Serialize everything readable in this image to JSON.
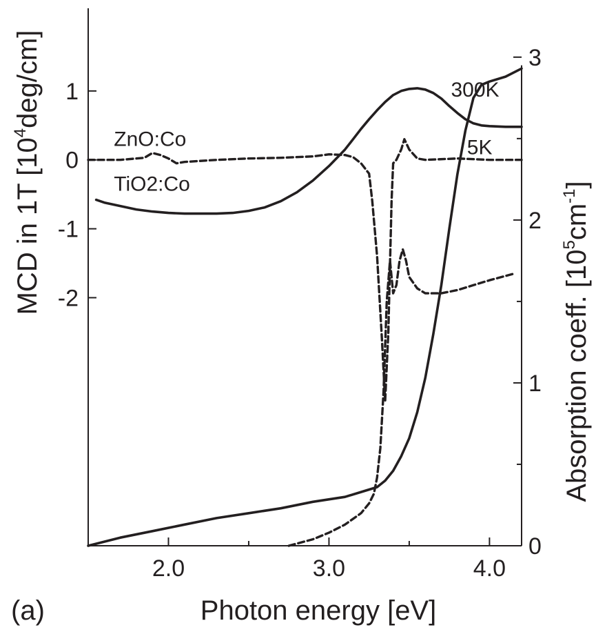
{
  "chart_data": {
    "type": "line",
    "panel_label": "(a)",
    "xlabel": "Photon energy [eV]",
    "ylabel_left": "MCD in 1T [10⁴deg/cm]",
    "ylabel_left_parts": {
      "pre": "MCD in 1T [10",
      "sup": "4",
      "post": "deg/cm]"
    },
    "ylabel_right": "Absorption coeff. [10⁵cm⁻¹]",
    "ylabel_right_parts": {
      "pre": "Absorption coeff. [10",
      "sup1": "5",
      "mid": "cm",
      "sup2": "-1",
      "post": "]"
    },
    "xlim": [
      1.5,
      4.2
    ],
    "ylim_left": [
      -5.6,
      2.2
    ],
    "ylim_right": [
      0,
      3.3
    ],
    "x_ticks": [
      {
        "value": 2.0,
        "label": "2.0"
      },
      {
        "value": 3.0,
        "label": "3.0"
      },
      {
        "value": 4.0,
        "label": "4.0"
      }
    ],
    "x_minor_ticks": [
      2.5,
      3.5
    ],
    "y_left_ticks": [
      {
        "value": 1,
        "label": "1"
      },
      {
        "value": 0,
        "label": "0"
      },
      {
        "value": -1,
        "label": "-1"
      },
      {
        "value": -2,
        "label": "-2"
      }
    ],
    "y_right_ticks": [
      {
        "value": 0,
        "label": "0"
      },
      {
        "value": 1,
        "label": "1"
      },
      {
        "value": 2,
        "label": "2"
      },
      {
        "value": 3,
        "label": "3"
      }
    ],
    "y_right_minor_ticks": [
      0.5,
      1.5,
      2.5
    ],
    "annotations": [
      {
        "id": "zno",
        "text": "ZnO:Co",
        "x": 1.66,
        "y": 0.2
      },
      {
        "id": "tio2",
        "text": "TiO2:Co",
        "x": 1.66,
        "y": -0.45
      },
      {
        "id": "t300",
        "text": "300K",
        "x": 3.76,
        "y": 0.92
      },
      {
        "id": "t5",
        "text": "5K",
        "x": 3.86,
        "y": 0.08
      }
    ],
    "series": [
      {
        "name": "TiO2:Co MCD 300K",
        "axis": "left",
        "style": "solid",
        "x": [
          1.55,
          1.6,
          1.7,
          1.8,
          1.9,
          2.0,
          2.1,
          2.2,
          2.3,
          2.4,
          2.5,
          2.6,
          2.7,
          2.8,
          2.9,
          3.0,
          3.05,
          3.1,
          3.15,
          3.2,
          3.25,
          3.3,
          3.35,
          3.4,
          3.45,
          3.5,
          3.55,
          3.6,
          3.65,
          3.7,
          3.75,
          3.8,
          3.85,
          3.9,
          3.95,
          4.0,
          4.1,
          4.2
        ],
        "y": [
          -0.58,
          -0.62,
          -0.67,
          -0.72,
          -0.75,
          -0.77,
          -0.78,
          -0.78,
          -0.78,
          -0.77,
          -0.74,
          -0.69,
          -0.6,
          -0.47,
          -0.3,
          -0.09,
          0.03,
          0.15,
          0.3,
          0.45,
          0.59,
          0.72,
          0.84,
          0.94,
          1.0,
          1.03,
          1.04,
          1.02,
          0.97,
          0.89,
          0.78,
          0.68,
          0.59,
          0.53,
          0.5,
          0.49,
          0.48,
          0.48
        ]
      },
      {
        "name": "ZnO:Co MCD 5K",
        "axis": "left",
        "style": "dashed",
        "x": [
          1.5,
          1.7,
          1.85,
          1.9,
          1.95,
          2.0,
          2.05,
          2.1,
          2.3,
          2.5,
          2.7,
          2.9,
          3.0,
          3.1,
          3.15,
          3.2,
          3.25,
          3.27,
          3.3,
          3.33,
          3.35,
          3.37,
          3.39,
          3.4,
          3.42,
          3.45,
          3.47,
          3.5,
          3.55,
          3.6,
          3.8,
          4.0,
          4.2
        ],
        "y": [
          0.0,
          0.0,
          0.03,
          0.1,
          0.07,
          0.02,
          -0.05,
          -0.03,
          0.0,
          0.02,
          0.03,
          0.05,
          0.08,
          0.07,
          0.04,
          -0.05,
          -0.2,
          -0.6,
          -1.4,
          -2.6,
          -3.5,
          -2.5,
          -0.6,
          -0.05,
          0.0,
          0.15,
          0.3,
          0.15,
          0.02,
          0.0,
          0.02,
          0.0,
          0.0
        ]
      },
      {
        "name": "TiO2:Co absorption",
        "axis": "right",
        "style": "solid",
        "x": [
          1.5,
          1.7,
          1.9,
          2.1,
          2.3,
          2.5,
          2.7,
          2.9,
          3.1,
          3.2,
          3.3,
          3.35,
          3.4,
          3.45,
          3.5,
          3.55,
          3.6,
          3.65,
          3.7,
          3.75,
          3.8,
          3.85,
          3.9,
          3.95,
          4.0,
          4.1,
          4.2
        ],
        "y": [
          0.0,
          0.05,
          0.09,
          0.13,
          0.17,
          0.2,
          0.23,
          0.27,
          0.3,
          0.33,
          0.36,
          0.4,
          0.46,
          0.55,
          0.66,
          0.82,
          1.03,
          1.3,
          1.6,
          1.95,
          2.28,
          2.55,
          2.75,
          2.83,
          2.85,
          2.88,
          2.93
        ]
      },
      {
        "name": "ZnO:Co absorption",
        "axis": "right",
        "style": "dashed",
        "x": [
          2.75,
          2.9,
          3.0,
          3.1,
          3.2,
          3.25,
          3.28,
          3.3,
          3.32,
          3.34,
          3.36,
          3.38,
          3.4,
          3.42,
          3.44,
          3.46,
          3.48,
          3.5,
          3.55,
          3.6,
          3.7,
          3.8,
          3.9,
          4.0,
          4.15
        ],
        "y": [
          0.0,
          0.04,
          0.08,
          0.13,
          0.2,
          0.26,
          0.32,
          0.42,
          0.6,
          0.95,
          1.5,
          1.75,
          1.55,
          1.6,
          1.75,
          1.82,
          1.75,
          1.65,
          1.58,
          1.55,
          1.55,
          1.57,
          1.6,
          1.63,
          1.67
        ]
      }
    ]
  }
}
